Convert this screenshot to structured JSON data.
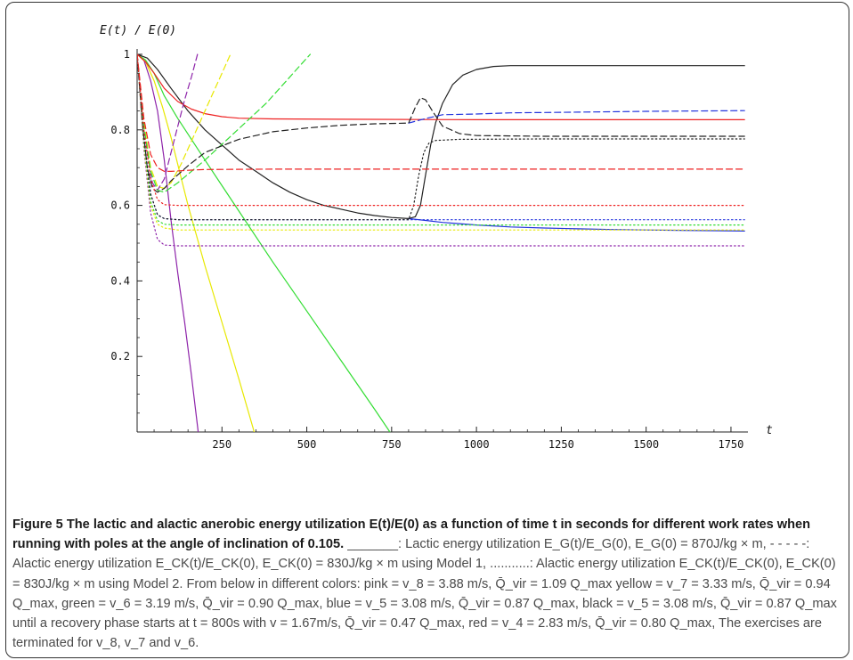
{
  "chart_data": {
    "type": "line",
    "ylabel": "E(t) / E(0)",
    "xlabel": "t",
    "xlim": [
      0,
      1800
    ],
    "ylim": [
      0,
      1
    ],
    "x_ticks": [
      "250",
      "500",
      "750",
      "1000",
      "1250",
      "1500",
      "1750"
    ],
    "y_ticks": [
      "1",
      "0.8",
      "0.6",
      "0.4",
      "0.2"
    ],
    "grid": false,
    "series": [
      {
        "color": "#8e24aa",
        "style": "solid",
        "points": [
          [
            0,
            1
          ],
          [
            20,
            0.985
          ],
          [
            40,
            0.93
          ],
          [
            60,
            0.85
          ],
          [
            80,
            0.72
          ],
          [
            100,
            0.56
          ],
          [
            120,
            0.42
          ],
          [
            140,
            0.29
          ],
          [
            160,
            0.15
          ],
          [
            180,
            0.0
          ]
        ]
      },
      {
        "color": "#e8e800",
        "style": "solid",
        "points": [
          [
            0,
            1
          ],
          [
            25,
            0.98
          ],
          [
            50,
            0.93
          ],
          [
            75,
            0.86
          ],
          [
            100,
            0.78
          ],
          [
            125,
            0.69
          ],
          [
            150,
            0.6
          ],
          [
            200,
            0.44
          ],
          [
            250,
            0.29
          ],
          [
            300,
            0.14
          ],
          [
            345,
            0.0
          ]
        ]
      },
      {
        "color": "#33dd33",
        "style": "solid",
        "points": [
          [
            0,
            1
          ],
          [
            25,
            0.985
          ],
          [
            50,
            0.95
          ],
          [
            80,
            0.89
          ],
          [
            120,
            0.83
          ],
          [
            200,
            0.72
          ],
          [
            300,
            0.585
          ],
          [
            400,
            0.45
          ],
          [
            500,
            0.32
          ],
          [
            600,
            0.19
          ],
          [
            700,
            0.06
          ],
          [
            745,
            0.0
          ]
        ]
      },
      {
        "color": "#2233dd",
        "style": "solid",
        "points": [
          [
            800,
            0.565
          ],
          [
            900,
            0.555
          ],
          [
            1000,
            0.548
          ],
          [
            1100,
            0.543
          ],
          [
            1200,
            0.54
          ],
          [
            1300,
            0.538
          ],
          [
            1400,
            0.536
          ],
          [
            1500,
            0.535
          ],
          [
            1600,
            0.534
          ],
          [
            1700,
            0.533
          ],
          [
            1790,
            0.532
          ]
        ]
      },
      {
        "color": "#222222",
        "style": "solid",
        "points": [
          [
            0,
            1
          ],
          [
            30,
            0.99
          ],
          [
            60,
            0.96
          ],
          [
            100,
            0.91
          ],
          [
            150,
            0.85
          ],
          [
            200,
            0.8
          ],
          [
            250,
            0.76
          ],
          [
            300,
            0.72
          ],
          [
            350,
            0.69
          ],
          [
            400,
            0.66
          ],
          [
            450,
            0.635
          ],
          [
            500,
            0.615
          ],
          [
            550,
            0.6
          ],
          [
            600,
            0.59
          ],
          [
            650,
            0.58
          ],
          [
            700,
            0.573
          ],
          [
            750,
            0.568
          ],
          [
            800,
            0.565
          ],
          [
            820,
            0.57
          ],
          [
            835,
            0.6
          ],
          [
            850,
            0.68
          ],
          [
            865,
            0.76
          ],
          [
            880,
            0.82
          ],
          [
            900,
            0.87
          ],
          [
            930,
            0.92
          ],
          [
            960,
            0.945
          ],
          [
            1000,
            0.96
          ],
          [
            1050,
            0.968
          ],
          [
            1100,
            0.97
          ],
          [
            1200,
            0.97
          ],
          [
            1400,
            0.97
          ],
          [
            1600,
            0.97
          ],
          [
            1790,
            0.97
          ]
        ]
      },
      {
        "color": "#ee2222",
        "style": "solid",
        "points": [
          [
            0,
            1
          ],
          [
            25,
            0.98
          ],
          [
            50,
            0.95
          ],
          [
            80,
            0.91
          ],
          [
            120,
            0.875
          ],
          [
            160,
            0.855
          ],
          [
            200,
            0.843
          ],
          [
            250,
            0.835
          ],
          [
            300,
            0.831
          ],
          [
            400,
            0.829
          ],
          [
            600,
            0.828
          ],
          [
            1000,
            0.827
          ],
          [
            1400,
            0.827
          ],
          [
            1790,
            0.827
          ]
        ]
      },
      {
        "color": "#8e24aa",
        "style": "dashed",
        "points": [
          [
            0,
            1
          ],
          [
            15,
            0.86
          ],
          [
            30,
            0.74
          ],
          [
            45,
            0.66
          ],
          [
            60,
            0.64
          ],
          [
            80,
            0.67
          ],
          [
            100,
            0.74
          ],
          [
            120,
            0.81
          ],
          [
            140,
            0.88
          ],
          [
            160,
            0.94
          ],
          [
            178,
            1.0
          ]
        ]
      },
      {
        "color": "#e8e800",
        "style": "dashed",
        "points": [
          [
            0,
            1
          ],
          [
            20,
            0.82
          ],
          [
            40,
            0.7
          ],
          [
            60,
            0.65
          ],
          [
            80,
            0.645
          ],
          [
            100,
            0.66
          ],
          [
            130,
            0.71
          ],
          [
            160,
            0.77
          ],
          [
            190,
            0.83
          ],
          [
            220,
            0.89
          ],
          [
            250,
            0.95
          ],
          [
            275,
            1.0
          ]
        ]
      },
      {
        "color": "#33dd33",
        "style": "dashed",
        "points": [
          [
            0,
            1
          ],
          [
            20,
            0.81
          ],
          [
            40,
            0.69
          ],
          [
            60,
            0.64
          ],
          [
            80,
            0.635
          ],
          [
            120,
            0.66
          ],
          [
            160,
            0.69
          ],
          [
            200,
            0.72
          ],
          [
            260,
            0.77
          ],
          [
            320,
            0.82
          ],
          [
            380,
            0.87
          ],
          [
            440,
            0.93
          ],
          [
            480,
            0.97
          ],
          [
            510,
            1.0
          ]
        ]
      },
      {
        "color": "#2233dd",
        "style": "dashed",
        "points": [
          [
            800,
            0.818
          ],
          [
            850,
            0.83
          ],
          [
            900,
            0.84
          ],
          [
            1000,
            0.842
          ],
          [
            1100,
            0.845
          ],
          [
            1300,
            0.847
          ],
          [
            1500,
            0.849
          ],
          [
            1790,
            0.851
          ]
        ]
      },
      {
        "color": "#222222",
        "style": "dashed",
        "points": [
          [
            0,
            1
          ],
          [
            15,
            0.82
          ],
          [
            30,
            0.7
          ],
          [
            45,
            0.645
          ],
          [
            60,
            0.635
          ],
          [
            80,
            0.645
          ],
          [
            100,
            0.665
          ],
          [
            150,
            0.705
          ],
          [
            200,
            0.74
          ],
          [
            300,
            0.775
          ],
          [
            400,
            0.795
          ],
          [
            500,
            0.805
          ],
          [
            600,
            0.812
          ],
          [
            700,
            0.816
          ],
          [
            800,
            0.818
          ],
          [
            820,
            0.86
          ],
          [
            835,
            0.885
          ],
          [
            850,
            0.88
          ],
          [
            870,
            0.85
          ],
          [
            900,
            0.81
          ],
          [
            950,
            0.79
          ],
          [
            1000,
            0.785
          ],
          [
            1200,
            0.783
          ],
          [
            1790,
            0.783
          ]
        ]
      },
      {
        "color": "#ee2222",
        "style": "dashed",
        "points": [
          [
            0,
            1
          ],
          [
            20,
            0.83
          ],
          [
            40,
            0.735
          ],
          [
            60,
            0.7
          ],
          [
            80,
            0.69
          ],
          [
            100,
            0.69
          ],
          [
            150,
            0.693
          ],
          [
            200,
            0.695
          ],
          [
            400,
            0.696
          ],
          [
            1000,
            0.696
          ],
          [
            1790,
            0.696
          ]
        ]
      },
      {
        "color": "#8e24aa",
        "style": "dotted",
        "points": [
          [
            0,
            1
          ],
          [
            20,
            0.75
          ],
          [
            40,
            0.58
          ],
          [
            60,
            0.51
          ],
          [
            80,
            0.495
          ],
          [
            120,
            0.493
          ],
          [
            400,
            0.493
          ],
          [
            1000,
            0.493
          ],
          [
            1790,
            0.493
          ]
        ]
      },
      {
        "color": "#e8e800",
        "style": "dotted",
        "points": [
          [
            0,
            1
          ],
          [
            20,
            0.76
          ],
          [
            40,
            0.6
          ],
          [
            60,
            0.55
          ],
          [
            80,
            0.54
          ],
          [
            120,
            0.535
          ],
          [
            400,
            0.535
          ],
          [
            1000,
            0.535
          ],
          [
            1790,
            0.535
          ]
        ]
      },
      {
        "color": "#33dd33",
        "style": "dotted",
        "points": [
          [
            0,
            1
          ],
          [
            20,
            0.77
          ],
          [
            40,
            0.61
          ],
          [
            60,
            0.56
          ],
          [
            80,
            0.55
          ],
          [
            120,
            0.548
          ],
          [
            400,
            0.548
          ],
          [
            1000,
            0.548
          ],
          [
            1790,
            0.548
          ]
        ]
      },
      {
        "color": "#2233dd",
        "style": "dotted",
        "points": [
          [
            0,
            1
          ],
          [
            20,
            0.78
          ],
          [
            40,
            0.63
          ],
          [
            60,
            0.575
          ],
          [
            80,
            0.565
          ],
          [
            120,
            0.562
          ],
          [
            400,
            0.562
          ],
          [
            800,
            0.562
          ],
          [
            1000,
            0.562
          ],
          [
            1790,
            0.562
          ]
        ]
      },
      {
        "color": "#222222",
        "style": "dotted",
        "points": [
          [
            0,
            1
          ],
          [
            20,
            0.78
          ],
          [
            40,
            0.63
          ],
          [
            60,
            0.575
          ],
          [
            80,
            0.565
          ],
          [
            120,
            0.562
          ],
          [
            400,
            0.562
          ],
          [
            800,
            0.562
          ],
          [
            815,
            0.6
          ],
          [
            830,
            0.68
          ],
          [
            845,
            0.74
          ],
          [
            860,
            0.765
          ],
          [
            880,
            0.772
          ],
          [
            950,
            0.775
          ],
          [
            1200,
            0.776
          ],
          [
            1790,
            0.776
          ]
        ]
      },
      {
        "color": "#ee2222",
        "style": "dotted",
        "points": [
          [
            0,
            1
          ],
          [
            20,
            0.8
          ],
          [
            40,
            0.67
          ],
          [
            60,
            0.615
          ],
          [
            80,
            0.602
          ],
          [
            120,
            0.6
          ],
          [
            400,
            0.6
          ],
          [
            1000,
            0.6
          ],
          [
            1790,
            0.6
          ]
        ]
      }
    ]
  },
  "caption": {
    "figure_label": "Figure 5",
    "title": "The lactic and alactic anerobic energy utilization E(t)/E(0) as a function of time t in seconds for different work rates when running with poles at the angle of inclination of 0.105.",
    "body": "_______: Lactic energy utilization E_G(t)/E_G(0), E_G(0) = 870J/kg × m, - - - - -: Alactic energy utilization E_CK(t)/E_CK(0), E_CK(0) = 830J/kg × m using Model 1, ...........: Alactic energy utilization E_CK(t)/E_CK(0), E_CK(0) = 830J/kg × m using Model 2. From below in different colors: pink = v_8 = 3.88 m/s, Q̄_vir = 1.09 Q_max yellow = v_7 = 3.33 m/s, Q̄_vir = 0.94 Q_max, green = v_6 = 3.19 m/s, Q̄_vir = 0.90 Q_max, blue = v_5 = 3.08 m/s, Q̄_vir = 0.87 Q_max, black = v_5 = 3.08 m/s, Q̄_vir = 0.87 Q_max until a recovery phase starts at t = 800s with v = 1.67m/s, Q̄_vir = 0.47 Q_max, red = v_4 = 2.83 m/s, Q̄_vir = 0.80 Q_max, The exercises are terminated for v_8, v_7 and v_6."
  }
}
